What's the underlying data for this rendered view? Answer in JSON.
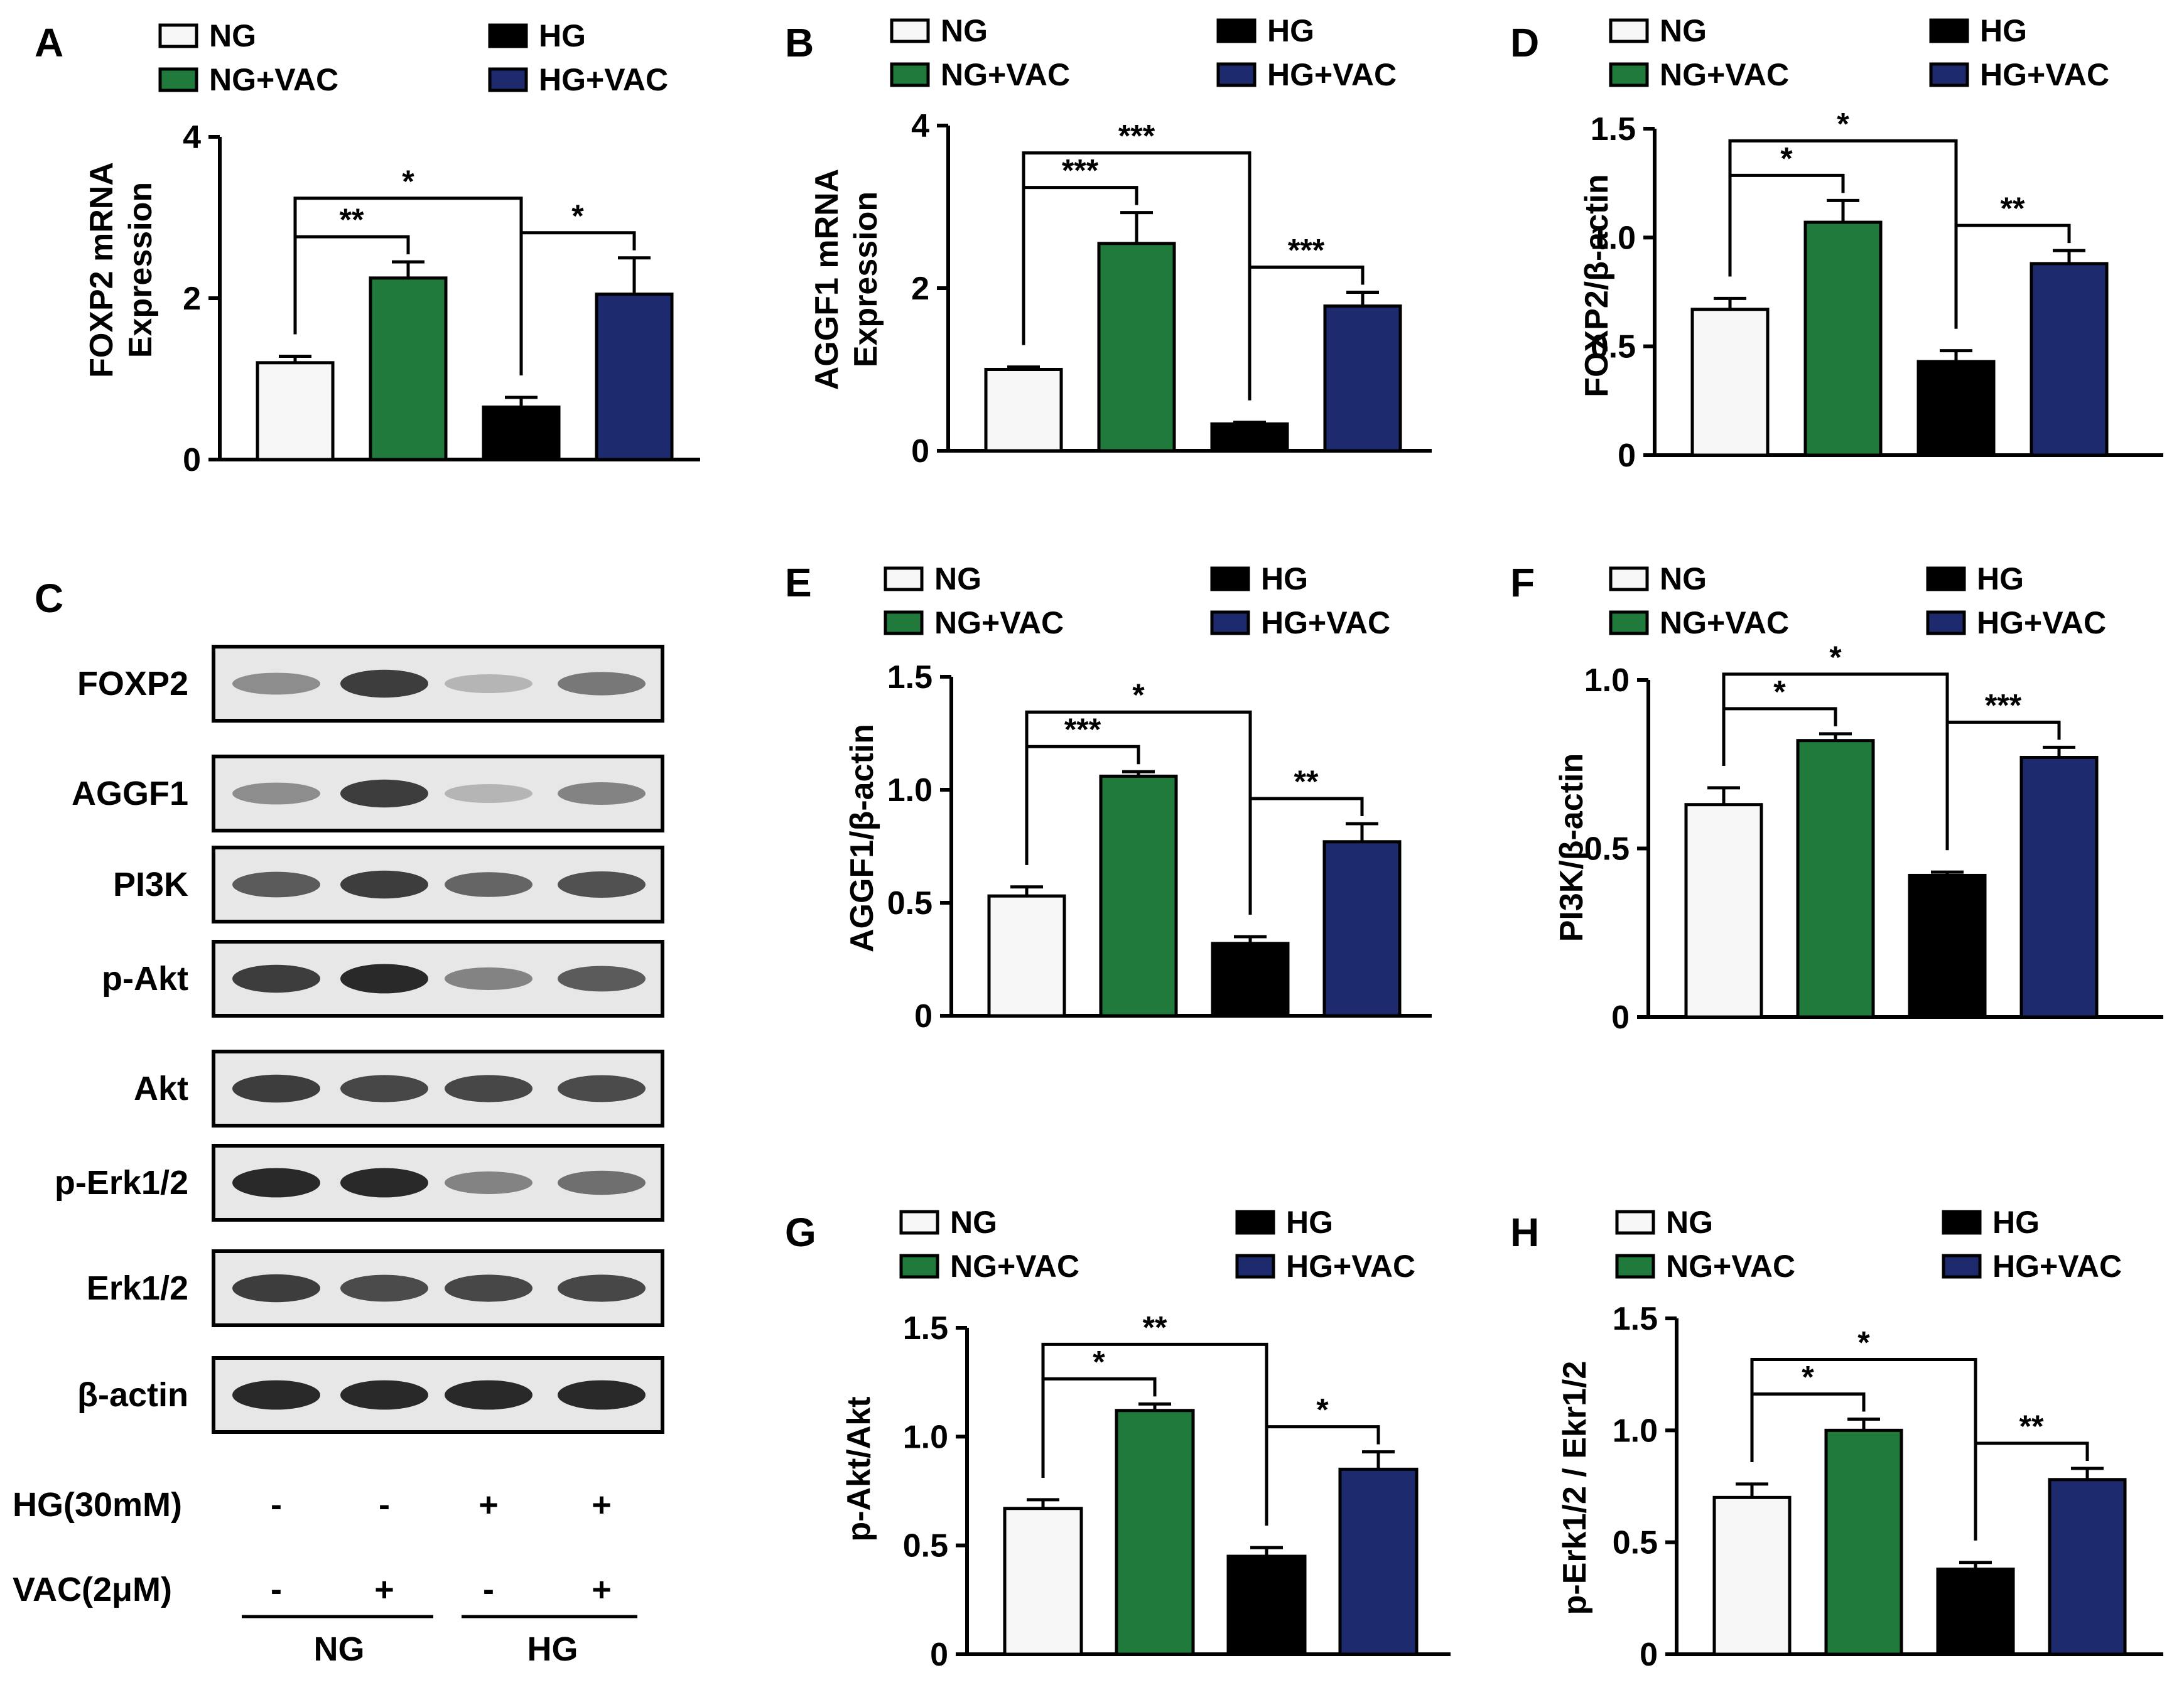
{
  "colors": {
    "NG": "#f7f7f7",
    "NG+VAC": "#1f7a3c",
    "HG": "#000000",
    "HG+VAC": "#1e2a6e"
  },
  "legend": [
    "NG",
    "NG+VAC",
    "HG",
    "HG+VAC"
  ],
  "chart_data": [
    {
      "panel": "A",
      "type": "bar",
      "ylabel": "FOXP2 mRNA Expression",
      "ylim": [
        0,
        4
      ],
      "yticks": [
        "0",
        "2",
        "4"
      ],
      "categories": [
        "NG",
        "NG+VAC",
        "HG",
        "HG+VAC"
      ],
      "values": [
        1.2,
        2.25,
        0.65,
        2.05
      ],
      "errors": [
        0.08,
        0.2,
        0.12,
        0.45
      ],
      "significance": [
        {
          "from": 0,
          "to": 1,
          "label": "**"
        },
        {
          "from": 0,
          "to": 2,
          "label": "*"
        },
        {
          "from": 2,
          "to": 3,
          "label": "*"
        }
      ]
    },
    {
      "panel": "B",
      "type": "bar",
      "ylabel": "AGGF1 mRNA Expression",
      "ylim": [
        0,
        4
      ],
      "yticks": [
        "0",
        "2",
        "4"
      ],
      "categories": [
        "NG",
        "NG+VAC",
        "HG",
        "HG+VAC"
      ],
      "values": [
        1.0,
        2.55,
        0.33,
        1.78
      ],
      "errors": [
        0.03,
        0.38,
        0.02,
        0.17
      ],
      "significance": [
        {
          "from": 0,
          "to": 1,
          "label": "***"
        },
        {
          "from": 0,
          "to": 2,
          "label": "***"
        },
        {
          "from": 2,
          "to": 3,
          "label": "***"
        }
      ]
    },
    {
      "panel": "D",
      "type": "bar",
      "ylabel": "FOXP2/β-actin",
      "ylim": [
        0,
        1.5
      ],
      "yticks": [
        "0",
        "0.5",
        "1.0",
        "1.5"
      ],
      "categories": [
        "NG",
        "NG+VAC",
        "HG",
        "HG+VAC"
      ],
      "values": [
        0.67,
        1.07,
        0.43,
        0.88
      ],
      "errors": [
        0.05,
        0.1,
        0.05,
        0.06
      ],
      "significance": [
        {
          "from": 0,
          "to": 1,
          "label": "*"
        },
        {
          "from": 0,
          "to": 2,
          "label": "*"
        },
        {
          "from": 2,
          "to": 3,
          "label": "**"
        }
      ]
    },
    {
      "panel": "E",
      "type": "bar",
      "ylabel": "AGGF1/β-actin",
      "ylim": [
        0,
        1.5
      ],
      "yticks": [
        "0",
        "0.5",
        "1.0",
        "1.5"
      ],
      "categories": [
        "NG",
        "NG+VAC",
        "HG",
        "HG+VAC"
      ],
      "values": [
        0.53,
        1.06,
        0.32,
        0.77
      ],
      "errors": [
        0.04,
        0.02,
        0.03,
        0.08
      ],
      "significance": [
        {
          "from": 0,
          "to": 1,
          "label": "***"
        },
        {
          "from": 0,
          "to": 2,
          "label": "*"
        },
        {
          "from": 2,
          "to": 3,
          "label": "**"
        }
      ]
    },
    {
      "panel": "F",
      "type": "bar",
      "ylabel": "PI3K/β-actin",
      "ylim": [
        0,
        1.0
      ],
      "yticks": [
        "0",
        "0.5",
        "1.0"
      ],
      "categories": [
        "NG",
        "NG+VAC",
        "HG",
        "HG+VAC"
      ],
      "values": [
        0.63,
        0.82,
        0.42,
        0.77
      ],
      "errors": [
        0.05,
        0.02,
        0.01,
        0.03
      ],
      "significance": [
        {
          "from": 0,
          "to": 1,
          "label": "*"
        },
        {
          "from": 0,
          "to": 2,
          "label": "*"
        },
        {
          "from": 2,
          "to": 3,
          "label": "***"
        }
      ]
    },
    {
      "panel": "G",
      "type": "bar",
      "ylabel": "p-Akt/Akt",
      "ylim": [
        0,
        1.5
      ],
      "yticks": [
        "0",
        "0.5",
        "1.0",
        "1.5"
      ],
      "categories": [
        "NG",
        "NG+VAC",
        "HG",
        "HG+VAC"
      ],
      "values": [
        0.67,
        1.12,
        0.45,
        0.85
      ],
      "errors": [
        0.04,
        0.03,
        0.04,
        0.08
      ],
      "significance": [
        {
          "from": 0,
          "to": 1,
          "label": "*"
        },
        {
          "from": 0,
          "to": 2,
          "label": "**"
        },
        {
          "from": 2,
          "to": 3,
          "label": "*"
        }
      ]
    },
    {
      "panel": "H",
      "type": "bar",
      "ylabel": "p-Erk1/2 / Ekr1/2",
      "ylim": [
        0,
        1.5
      ],
      "yticks": [
        "0",
        "0.5",
        "1.0",
        "1.5"
      ],
      "categories": [
        "NG",
        "NG+VAC",
        "HG",
        "HG+VAC"
      ],
      "values": [
        0.7,
        1.0,
        0.38,
        0.78
      ],
      "errors": [
        0.06,
        0.05,
        0.03,
        0.05
      ],
      "significance": [
        {
          "from": 0,
          "to": 1,
          "label": "*"
        },
        {
          "from": 0,
          "to": 2,
          "label": "*"
        },
        {
          "from": 2,
          "to": 3,
          "label": "**"
        }
      ]
    }
  ],
  "blot": {
    "panel": "C",
    "rows": [
      {
        "label": "FOXP2",
        "intensity": [
          0.45,
          0.85,
          0.25,
          0.55
        ]
      },
      {
        "label": "AGGF1",
        "intensity": [
          0.45,
          0.85,
          0.25,
          0.5
        ]
      },
      {
        "label": "PI3K",
        "intensity": [
          0.7,
          0.85,
          0.65,
          0.75
        ]
      },
      {
        "label": "p-Akt",
        "intensity": [
          0.85,
          0.95,
          0.5,
          0.7
        ]
      },
      {
        "label": "Akt",
        "intensity": [
          0.85,
          0.8,
          0.8,
          0.78
        ]
      },
      {
        "label": "p-Erk1/2",
        "intensity": [
          0.95,
          0.95,
          0.5,
          0.6
        ]
      },
      {
        "label": "Erk1/2",
        "intensity": [
          0.85,
          0.78,
          0.8,
          0.8
        ]
      },
      {
        "label": "β-actin",
        "intensity": [
          0.95,
          0.95,
          0.95,
          0.95
        ]
      }
    ],
    "conditions": [
      {
        "label": "HG(30mM)",
        "values": [
          "-",
          "-",
          "+",
          "+"
        ]
      },
      {
        "label": "VAC(2μM)",
        "values": [
          "-",
          "+",
          "-",
          "+"
        ]
      }
    ],
    "groups": [
      "NG",
      "HG"
    ]
  }
}
